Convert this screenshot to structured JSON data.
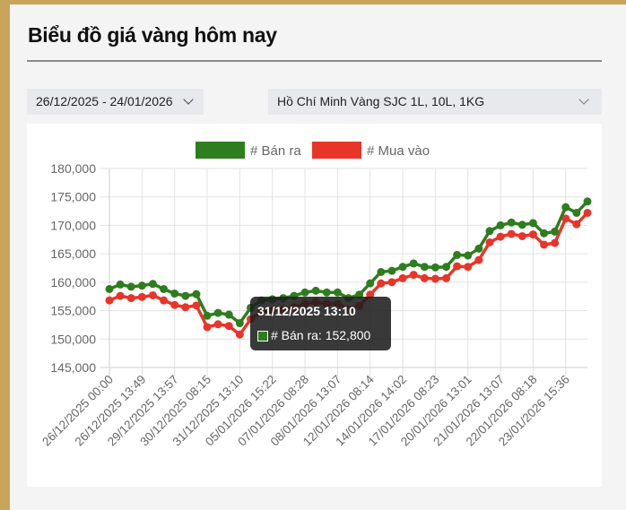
{
  "page": {
    "title": "Biểu đồ giá vàng hôm nay"
  },
  "filters": {
    "date_range": "26/12/2025 - 24/01/2026",
    "location_product": "Hồ Chí Minh Vàng SJC 1L, 10L, 1KG"
  },
  "tooltip": {
    "title": "31/12/2025 13:10",
    "label": "# Bán ra: 152,800",
    "swatch_color": "#2e7d1f"
  },
  "colors": {
    "sell": "#2e7d1f",
    "buy": "#e8352a",
    "grid": "#e2e2e2",
    "axis_text": "#666666"
  },
  "chart_data": {
    "type": "line",
    "title": "",
    "xlabel": "",
    "ylabel": "",
    "ylim": [
      145000,
      180000
    ],
    "yticks": [
      180000,
      175000,
      170000,
      165000,
      160000,
      155000,
      150000,
      145000
    ],
    "ytick_labels": [
      "180,000",
      "175,000",
      "170,000",
      "165,000",
      "160,000",
      "155,000",
      "150,000",
      "145,000"
    ],
    "xtick_labels": [
      "26/12/2025 00:00",
      "26/12/2025 13:49",
      "29/12/2025 13:57",
      "30/12/2025 08:15",
      "31/12/2025 13:10",
      "05/01/2026 15:22",
      "07/01/2026 08:28",
      "08/01/2026 13:07",
      "12/01/2026 08:14",
      "14/01/2026 14:02",
      "17/01/2026 08:23",
      "20/01/2026 13:01",
      "21/01/2026 13:07",
      "22/01/2026 08:18",
      "23/01/2026 15:36"
    ],
    "grid": true,
    "legend_position": "top",
    "series": [
      {
        "name": "# Bán ra",
        "color": "#2e7d1f",
        "values": [
          158800,
          159600,
          159200,
          159400,
          159700,
          158800,
          158000,
          157600,
          157900,
          154100,
          154600,
          154300,
          152800,
          155500,
          156800,
          157000,
          157200,
          157600,
          158200,
          158500,
          158200,
          158200,
          157200,
          157800,
          159800,
          161800,
          162000,
          162700,
          163300,
          162700,
          162600,
          162700,
          164800,
          164700,
          165900,
          169000,
          170000,
          170500,
          170100,
          170400,
          168600,
          168900,
          173200,
          172200,
          174200
        ]
      },
      {
        "name": "# Mua vào",
        "color": "#e8352a",
        "values": [
          156800,
          157600,
          157200,
          157400,
          157700,
          156800,
          156000,
          155600,
          155900,
          152100,
          152600,
          152300,
          150800,
          153500,
          154800,
          155000,
          155200,
          155600,
          156200,
          156500,
          156200,
          156200,
          155200,
          155800,
          157800,
          159800,
          160000,
          160700,
          161300,
          160700,
          160600,
          160700,
          162800,
          162700,
          163900,
          167000,
          168000,
          168500,
          168100,
          168400,
          166600,
          166900,
          171200,
          170200,
          172200
        ]
      }
    ]
  }
}
